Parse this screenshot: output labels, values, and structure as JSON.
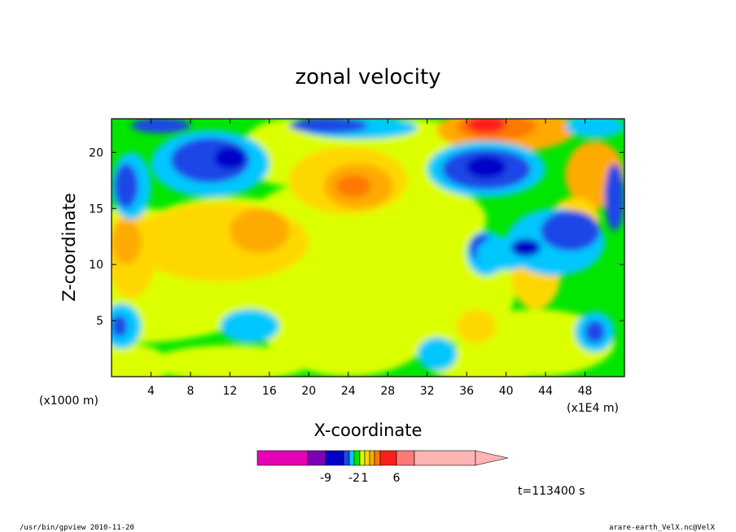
{
  "chart_data": {
    "type": "heatmap",
    "title": "zonal velocity",
    "xlabel": "X-coordinate",
    "ylabel": "Z-coordinate",
    "x_unit": "(x1000 m)",
    "x_scale_note": "(x1E4 m)",
    "xlim": [
      0,
      52
    ],
    "ylim": [
      0,
      23
    ],
    "x_ticks": [
      "4",
      "8",
      "12",
      "16",
      "20",
      "24",
      "28",
      "32",
      "36",
      "40",
      "44",
      "48"
    ],
    "y_ticks": [
      "5",
      "10",
      "15",
      "20"
    ],
    "colorbar": {
      "tick_labels": [
        "-9",
        "-2",
        "1",
        "6"
      ],
      "colors": [
        "#e600b4",
        "#7d00b4",
        "#0000c8",
        "#1e46e6",
        "#00c8ff",
        "#00e600",
        "#dcff00",
        "#ffd700",
        "#ffaa00",
        "#ff7800",
        "#ff1e1e",
        "#ff7878",
        "#ffb4b4"
      ]
    },
    "time_label": "t=113400 s"
  },
  "footer": {
    "left": "/usr/bin/gpview   2010-11-20",
    "right": "arare-earth_VelX.nc@VelX"
  }
}
